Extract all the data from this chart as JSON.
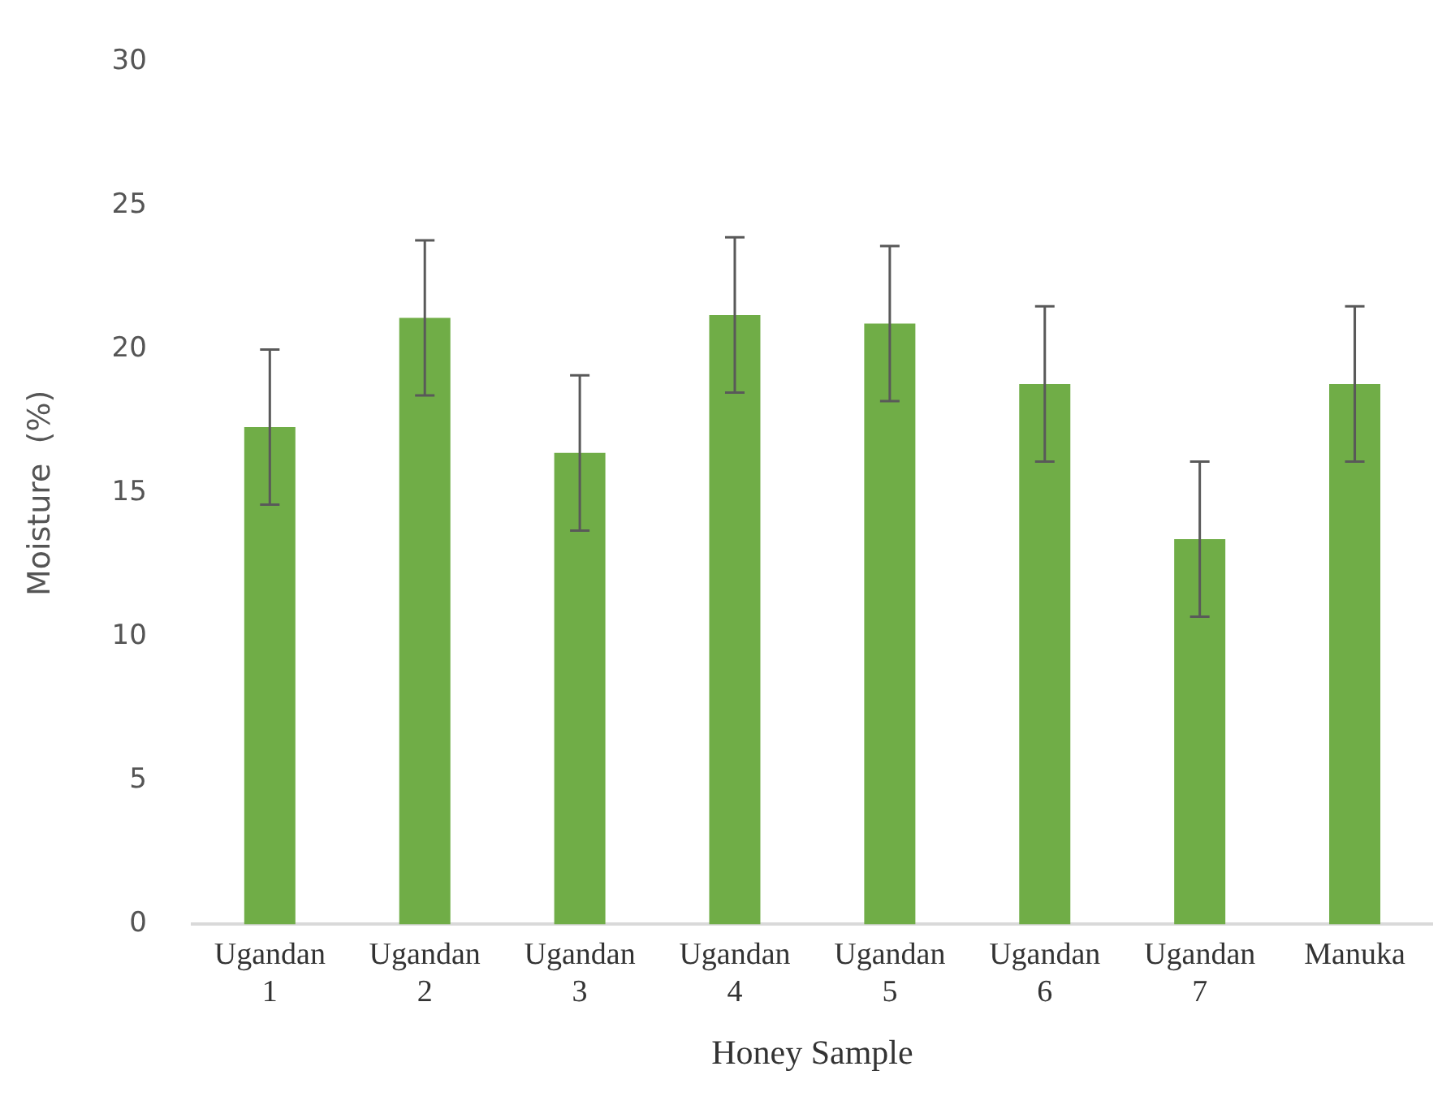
{
  "chart_data": {
    "type": "bar",
    "xlabel": "Honey Sample",
    "ylabel": "Moisture  (%)",
    "categories": [
      "Ugandan 1",
      "Ugandan 2",
      "Ugandan 3",
      "Ugandan 4",
      "Ugandan 5",
      "Ugandan 6",
      "Ugandan 7",
      "Manuka"
    ],
    "values": [
      17.3,
      21.1,
      16.4,
      21.2,
      20.9,
      18.8,
      13.4,
      18.8
    ],
    "errors": [
      2.7,
      2.7,
      2.7,
      2.7,
      2.7,
      2.7,
      2.7,
      2.7
    ],
    "color": "#70ad47",
    "ylim": [
      0,
      30
    ],
    "yticks": [
      0,
      5,
      10,
      15,
      20,
      25,
      30
    ],
    "grid": false,
    "legend": false
  }
}
